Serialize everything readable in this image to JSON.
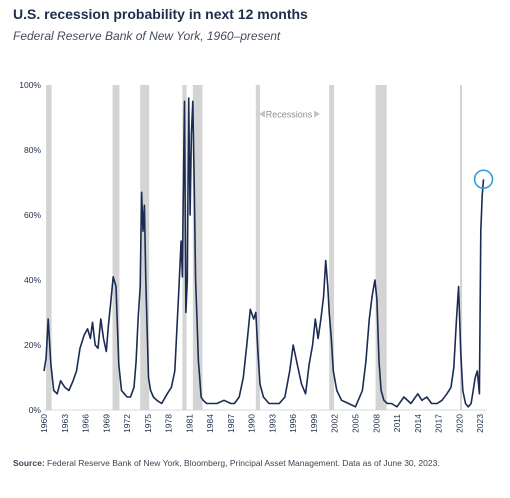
{
  "header": {
    "title": "U.S. recession probability in next 12 months",
    "subtitle": "Federal Reserve Bank of New York, 1960–present"
  },
  "footer": {
    "source_label": "Source:",
    "source_text": " Federal Reserve Bank of New York, Bloomberg, Principal Asset Management. Data as of June 30, 2023."
  },
  "colors": {
    "line": "#1b2b52",
    "recession_band": "#d4d4d4",
    "highlight_circle": "#2e9fd6",
    "axis_text": "#1f2d4a"
  },
  "chart_data": {
    "type": "line",
    "title": "U.S. recession probability in next 12 months",
    "subtitle": "Federal Reserve Bank of New York, 1960–present",
    "xlim": [
      1960,
      2024
    ],
    "ylim": [
      0,
      100
    ],
    "y_ticks": [
      0,
      20,
      40,
      60,
      80,
      100
    ],
    "y_tick_labels": [
      "0%",
      "20%",
      "40%",
      "60%",
      "80%",
      "100%"
    ],
    "x_ticks": [
      1960,
      1963,
      1966,
      1969,
      1972,
      1975,
      1978,
      1981,
      1984,
      1987,
      1990,
      1993,
      1996,
      1999,
      2002,
      2005,
      2008,
      2011,
      2014,
      2017,
      2020,
      2023
    ],
    "x_tick_labels": [
      "1960",
      "1963",
      "1966",
      "1969",
      "1972",
      "1975",
      "1978",
      "1981",
      "1984",
      "1987",
      "1990",
      "1993",
      "1996",
      "1999",
      "2002",
      "2005",
      "2008",
      "2011",
      "2014",
      "2017",
      "2020",
      "2023"
    ],
    "grid": false,
    "annotation_label": "Recessions",
    "recessions": [
      [
        1960.3,
        1961.1
      ],
      [
        1969.9,
        1970.9
      ],
      [
        1973.9,
        1975.2
      ],
      [
        1980.0,
        1980.6
      ],
      [
        1981.5,
        1982.9
      ],
      [
        1990.6,
        1991.2
      ],
      [
        2001.2,
        2001.9
      ],
      [
        2007.9,
        2009.5
      ],
      [
        2020.1,
        2020.4
      ]
    ],
    "x": [
      1960.0,
      1960.3,
      1960.6,
      1961.0,
      1961.4,
      1961.9,
      1962.4,
      1963.0,
      1963.6,
      1964.2,
      1964.7,
      1965.2,
      1965.8,
      1966.3,
      1966.7,
      1967.0,
      1967.4,
      1967.8,
      1968.2,
      1968.6,
      1969.0,
      1969.3,
      1969.6,
      1970.0,
      1970.4,
      1970.8,
      1971.2,
      1971.6,
      1972.0,
      1972.5,
      1973.0,
      1973.3,
      1973.6,
      1973.9,
      1974.1,
      1974.3,
      1974.5,
      1974.7,
      1974.9,
      1975.1,
      1975.4,
      1975.8,
      1976.3,
      1977.0,
      1977.8,
      1978.4,
      1978.9,
      1979.2,
      1979.5,
      1979.8,
      1980.0,
      1980.1,
      1980.3,
      1980.5,
      1980.7,
      1980.9,
      1981.1,
      1981.3,
      1981.5,
      1981.7,
      1981.9,
      1982.1,
      1982.3,
      1982.5,
      1982.7,
      1983.0,
      1983.5,
      1984.2,
      1985.0,
      1986.0,
      1987.0,
      1987.5,
      1988.2,
      1988.8,
      1989.3,
      1989.8,
      1990.3,
      1990.6,
      1990.9,
      1991.2,
      1991.7,
      1992.5,
      1993.3,
      1994.0,
      1994.8,
      1995.5,
      1996.0,
      1996.6,
      1997.2,
      1997.8,
      1998.3,
      1998.8,
      1999.2,
      1999.6,
      2000.0,
      2000.4,
      2000.7,
      2001.0,
      2001.2,
      2001.5,
      2001.8,
      2002.3,
      2003.0,
      2004.0,
      2005.0,
      2006.0,
      2006.5,
      2007.0,
      2007.4,
      2007.8,
      2008.1,
      2008.4,
      2008.7,
      2009.1,
      2009.6,
      2010.2,
      2011.0,
      2012.0,
      2013.0,
      2014.0,
      2014.6,
      2015.3,
      2016.0,
      2016.8,
      2017.5,
      2018.2,
      2018.8,
      2019.2,
      2019.6,
      2019.9,
      2020.2,
      2020.5,
      2020.9,
      2021.3,
      2021.7,
      2022.0,
      2022.3,
      2022.6,
      2022.9,
      2023.1,
      2023.3,
      2023.5
    ],
    "values": [
      12,
      16,
      28,
      14,
      6,
      5,
      9,
      7,
      6,
      9,
      12,
      19,
      23,
      25,
      22,
      27,
      20,
      19,
      28,
      22,
      18,
      26,
      32,
      41,
      38,
      14,
      6,
      5,
      4,
      4,
      7,
      15,
      28,
      38,
      67,
      55,
      63,
      40,
      25,
      10,
      6,
      4,
      3,
      2,
      5,
      7,
      12,
      25,
      38,
      52,
      41,
      62,
      95,
      30,
      40,
      96,
      60,
      85,
      95,
      70,
      40,
      28,
      15,
      10,
      4,
      3,
      2,
      2,
      2,
      3,
      2,
      2,
      4,
      10,
      20,
      31,
      28,
      30,
      18,
      8,
      4,
      2,
      2,
      2,
      4,
      12,
      20,
      14,
      8,
      5,
      14,
      20,
      28,
      22,
      28,
      35,
      46,
      38,
      30,
      22,
      12,
      6,
      3,
      2,
      1,
      6,
      15,
      28,
      35,
      40,
      34,
      15,
      6,
      3,
      2,
      2,
      1,
      4,
      2,
      5,
      3,
      4,
      2,
      2,
      3,
      5,
      7,
      13,
      28,
      38,
      18,
      6,
      2,
      1,
      2,
      6,
      10,
      12,
      5,
      55,
      66,
      71
    ]
  }
}
